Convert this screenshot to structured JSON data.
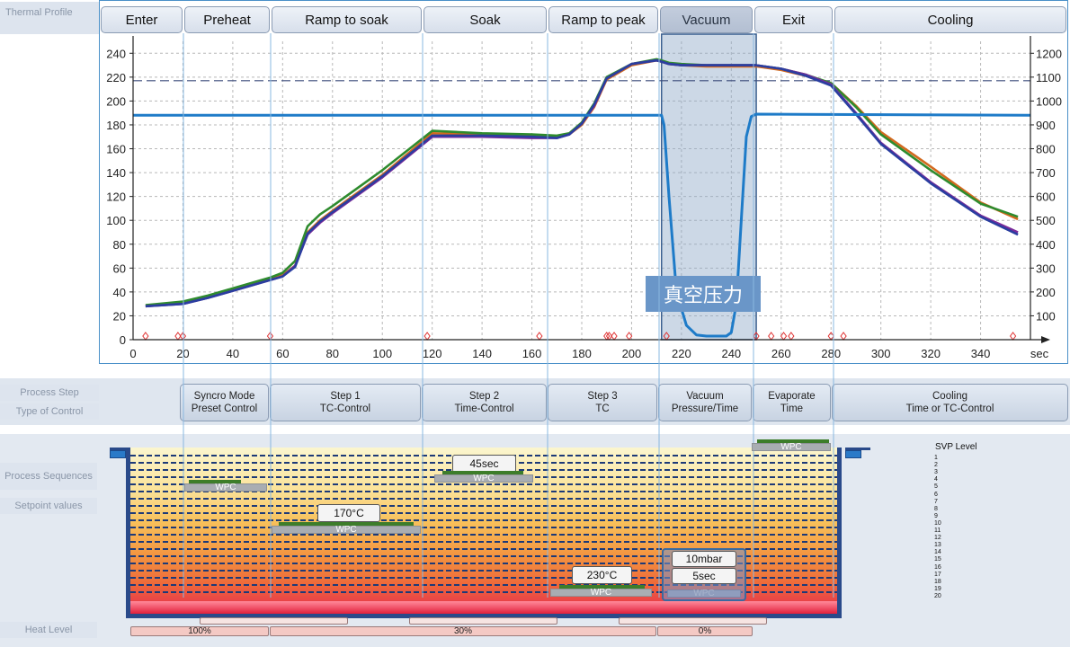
{
  "sidebar": {
    "thermal_profile": "Thermal Profile",
    "process_step": "Process Step",
    "type_of_control": "Type of Control",
    "process_sequences": "Process Sequences",
    "setpoint_values": "Setpoint values",
    "heat_level": "Heat Level"
  },
  "phases": [
    {
      "label": "Enter"
    },
    {
      "label": "Preheat"
    },
    {
      "label": "Ramp to soak"
    },
    {
      "label": "Soak"
    },
    {
      "label": "Ramp to peak"
    },
    {
      "label": "Vacuum"
    },
    {
      "label": "Exit"
    },
    {
      "label": "Cooling"
    }
  ],
  "chart_data": {
    "type": "line",
    "x_unit": "sec",
    "xlim": [
      0,
      360
    ],
    "ylim": [
      0,
      250
    ],
    "y2lim": [
      0,
      1250
    ],
    "x_ticks": [
      0,
      20,
      40,
      60,
      80,
      100,
      120,
      140,
      160,
      180,
      200,
      220,
      240,
      260,
      280,
      300,
      320,
      340
    ],
    "y_ticks": [
      0,
      20,
      40,
      60,
      80,
      100,
      120,
      140,
      160,
      180,
      200,
      220,
      240
    ],
    "y2_ticks": [
      100,
      200,
      300,
      400,
      500,
      600,
      700,
      800,
      900,
      1000,
      1100,
      1200
    ],
    "grid": true,
    "dashed_reference_y": 217,
    "highlight_x_range": [
      212,
      250
    ],
    "annotation": "真空压力",
    "series": [
      {
        "color": "#d2691e",
        "x": [
          5,
          20,
          30,
          40,
          50,
          55,
          60,
          65,
          70,
          75,
          80,
          100,
          120,
          140,
          160,
          170,
          175,
          180,
          185,
          190,
          200,
          210,
          212,
          215,
          220,
          230,
          240,
          250,
          260,
          270,
          280,
          290,
          300,
          320,
          340,
          355
        ],
        "y": [
          28,
          31,
          36,
          42,
          48,
          51,
          54,
          62,
          90,
          100,
          108,
          138,
          173,
          172,
          171,
          170,
          172,
          180,
          195,
          218,
          230,
          234,
          233,
          231,
          230,
          229,
          229,
          229,
          226,
          221,
          215,
          196,
          174,
          145,
          115,
          101
        ]
      },
      {
        "color": "#2e8b2e",
        "x": [
          5,
          20,
          30,
          40,
          50,
          55,
          60,
          65,
          70,
          75,
          80,
          100,
          120,
          140,
          160,
          170,
          175,
          180,
          185,
          190,
          200,
          210,
          212,
          215,
          220,
          230,
          240,
          250,
          260,
          270,
          280,
          290,
          300,
          320,
          340,
          355
        ],
        "y": [
          29,
          32,
          37,
          43,
          49,
          52,
          56,
          66,
          95,
          105,
          112,
          142,
          175,
          173,
          172,
          171,
          173,
          182,
          198,
          220,
          231,
          235,
          234,
          232,
          231,
          230,
          230,
          230,
          227,
          222,
          215,
          195,
          172,
          142,
          114,
          103
        ]
      },
      {
        "color": "#7a2a9a",
        "x": [
          5,
          20,
          30,
          40,
          50,
          55,
          60,
          65,
          70,
          75,
          80,
          100,
          120,
          140,
          160,
          170,
          175,
          180,
          185,
          190,
          200,
          210,
          212,
          215,
          220,
          230,
          240,
          250,
          260,
          270,
          280,
          290,
          300,
          320,
          340,
          355
        ],
        "y": [
          28,
          30,
          35,
          41,
          47,
          50,
          53,
          62,
          88,
          98,
          106,
          136,
          170,
          170,
          169,
          169,
          172,
          181,
          196,
          219,
          231,
          234,
          233,
          231,
          230,
          230,
          230,
          230,
          227,
          222,
          214,
          190,
          165,
          132,
          104,
          90
        ]
      },
      {
        "color": "#2a3ea0",
        "x": [
          5,
          20,
          30,
          40,
          50,
          55,
          60,
          65,
          70,
          75,
          80,
          100,
          120,
          140,
          160,
          170,
          175,
          180,
          185,
          190,
          200,
          210,
          212,
          215,
          220,
          230,
          240,
          250,
          260,
          270,
          280,
          290,
          300,
          320,
          340,
          355
        ],
        "y": [
          28,
          30,
          35,
          41,
          47,
          50,
          53,
          61,
          89,
          99,
          107,
          137,
          171,
          171,
          170,
          169,
          172,
          181,
          197,
          219,
          231,
          234,
          233,
          231,
          230,
          230,
          230,
          230,
          227,
          221,
          213,
          189,
          164,
          131,
          103,
          88
        ]
      },
      {
        "color": "#1e7bc8",
        "axis": "right",
        "x": [
          0,
          212,
          213,
          215,
          218,
          222,
          226,
          230,
          234,
          238,
          240,
          242,
          244,
          246,
          248,
          250,
          360
        ],
        "y": [
          940,
          940,
          900,
          600,
          200,
          60,
          20,
          15,
          15,
          15,
          30,
          150,
          500,
          850,
          935,
          945,
          940
        ]
      }
    ],
    "markers_x": [
      5,
      18,
      20,
      55,
      118,
      163,
      190,
      191,
      193,
      199,
      214,
      250,
      256,
      261,
      264,
      280,
      285,
      353
    ]
  },
  "steps": [
    {
      "line1": "Syncro Mode",
      "line2": "Preset Control"
    },
    {
      "line1": "Step 1",
      "line2": "TC-Control"
    },
    {
      "line1": "Step 2",
      "line2": "Time-Control"
    },
    {
      "line1": "Step 3",
      "line2": "TC"
    },
    {
      "line1": "Vacuum",
      "line2": "Pressure/Time"
    },
    {
      "line1": "Evaporate",
      "line2": "Time"
    },
    {
      "line1": "Cooling",
      "line2": "Time or TC-Control"
    }
  ],
  "sequences": {
    "wpc_label": "WPC",
    "setpoints": [
      "170°C",
      "45sec",
      "230°C",
      "10mbar",
      "5sec"
    ]
  },
  "svp": {
    "title": "SVP Level",
    "levels": [
      "1",
      "2",
      "3",
      "4",
      "5",
      "6",
      "7",
      "8",
      "9",
      "10",
      "11",
      "12",
      "13",
      "14",
      "15",
      "16",
      "17",
      "18",
      "19",
      "20"
    ]
  },
  "heat_levels": [
    "100%",
    "30%",
    "0%"
  ]
}
